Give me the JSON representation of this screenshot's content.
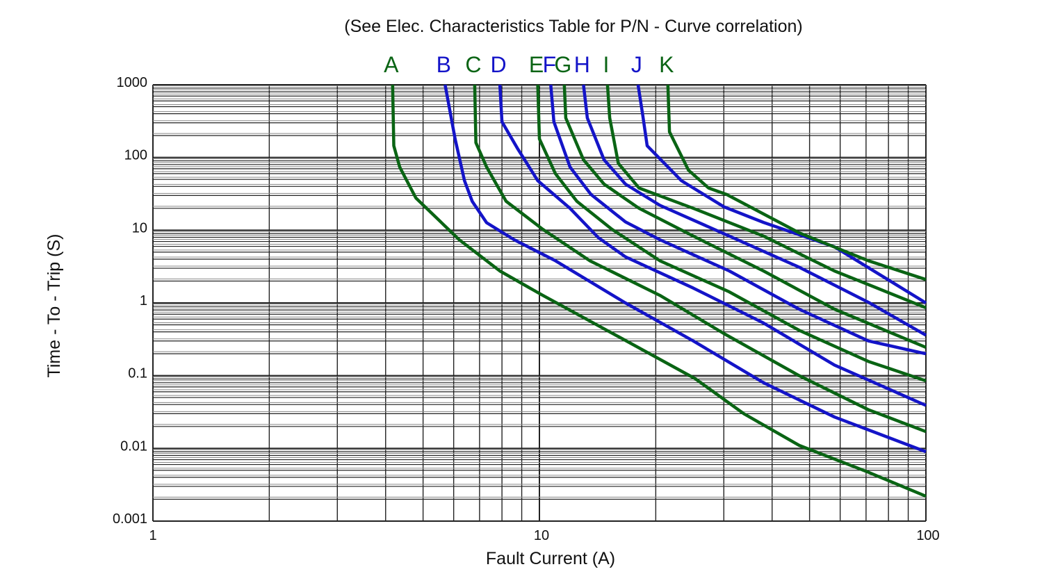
{
  "chart_data": {
    "type": "line",
    "title": "(See Elec. Characteristics Table for P/N - Curve correlation)",
    "xlabel": "Fault Current (A)",
    "ylabel": "Time - To - Trip (S)",
    "xscale": "log",
    "yscale": "log",
    "xlim": [
      1,
      100
    ],
    "ylim": [
      0.001,
      1000
    ],
    "xticks": [
      {
        "value": 1,
        "label": "1"
      },
      {
        "value": 10,
        "label": "10"
      },
      {
        "value": 100,
        "label": "100"
      }
    ],
    "yticks": [
      {
        "value": 1000,
        "label": "1000"
      },
      {
        "value": 100,
        "label": "100"
      },
      {
        "value": 10,
        "label": "10"
      },
      {
        "value": 1,
        "label": "1"
      },
      {
        "value": 0.1,
        "label": "0.1"
      },
      {
        "value": 0.01,
        "label": "0.01"
      },
      {
        "value": 0.001,
        "label": "0.001"
      }
    ],
    "grid": true,
    "colors": {
      "green": "#0a6414",
      "blue": "#1414c8",
      "grid": "#222222"
    },
    "series": [
      {
        "name": "A",
        "color": "#0a6414",
        "points": [
          [
            4.17,
            1000
          ],
          [
            4.2,
            145
          ],
          [
            4.35,
            74
          ],
          [
            4.79,
            27.7
          ],
          [
            6.2,
            7.4
          ],
          [
            7.9,
            2.75
          ],
          [
            10.2,
            1.27
          ],
          [
            16.7,
            0.305
          ],
          [
            25.3,
            0.091
          ],
          [
            33.8,
            0.03
          ],
          [
            47,
            0.011
          ],
          [
            71,
            0.0047
          ],
          [
            100,
            0.0022
          ]
        ]
      },
      {
        "name": "B",
        "color": "#1414c8",
        "points": [
          [
            5.7,
            1000
          ],
          [
            6.05,
            180
          ],
          [
            6.4,
            48
          ],
          [
            6.7,
            25
          ],
          [
            7.3,
            12.7
          ],
          [
            8.6,
            7.4
          ],
          [
            11,
            3.8
          ],
          [
            16.7,
            1.0
          ],
          [
            25,
            0.3
          ],
          [
            38,
            0.08
          ],
          [
            58,
            0.027
          ],
          [
            100,
            0.009
          ]
        ]
      },
      {
        "name": "C",
        "color": "#0a6414",
        "points": [
          [
            6.8,
            1000
          ],
          [
            6.85,
            160
          ],
          [
            7.3,
            74
          ],
          [
            8.2,
            25
          ],
          [
            10.2,
            10.3
          ],
          [
            13.5,
            3.8
          ],
          [
            20.5,
            1.27
          ],
          [
            30,
            0.38
          ],
          [
            47,
            0.1
          ],
          [
            71,
            0.034
          ],
          [
            100,
            0.017
          ]
        ]
      },
      {
        "name": "D",
        "color": "#1414c8",
        "points": [
          [
            7.9,
            1000
          ],
          [
            8.0,
            310
          ],
          [
            8.8,
            130
          ],
          [
            9.9,
            48
          ],
          [
            12,
            20
          ],
          [
            14.2,
            7.9
          ],
          [
            16.7,
            4.3
          ],
          [
            25,
            1.6
          ],
          [
            38,
            0.53
          ],
          [
            58,
            0.14
          ],
          [
            100,
            0.039
          ]
        ]
      },
      {
        "name": "E",
        "color": "#0a6414",
        "points": [
          [
            9.9,
            1000
          ],
          [
            10,
            180
          ],
          [
            11,
            60
          ],
          [
            12.5,
            25
          ],
          [
            15.4,
            10.3
          ],
          [
            20.5,
            3.8
          ],
          [
            31,
            1.42
          ],
          [
            47,
            0.42
          ],
          [
            71,
            0.157
          ],
          [
            100,
            0.085
          ]
        ]
      },
      {
        "name": "F",
        "color": "#1414c8",
        "points": [
          [
            10.7,
            1000
          ],
          [
            10.9,
            310
          ],
          [
            12,
            74
          ],
          [
            13.6,
            31
          ],
          [
            16.7,
            13
          ],
          [
            20.5,
            7.4
          ],
          [
            31,
            2.75
          ],
          [
            47,
            0.82
          ],
          [
            71,
            0.3
          ],
          [
            100,
            0.2
          ]
        ]
      },
      {
        "name": "G",
        "color": "#0a6414",
        "points": [
          [
            11.6,
            1000
          ],
          [
            11.7,
            350
          ],
          [
            13,
            93
          ],
          [
            14.7,
            43
          ],
          [
            18.1,
            20
          ],
          [
            25,
            8.3
          ],
          [
            38,
            2.75
          ],
          [
            58,
            0.82
          ],
          [
            100,
            0.245
          ]
        ]
      },
      {
        "name": "H",
        "color": "#1414c8",
        "points": [
          [
            13,
            1000
          ],
          [
            13.3,
            350
          ],
          [
            14.7,
            93
          ],
          [
            16.7,
            43
          ],
          [
            20.5,
            22
          ],
          [
            31,
            8.3
          ],
          [
            47,
            3.1
          ],
          [
            71,
            1.02
          ],
          [
            100,
            0.36
          ]
        ]
      },
      {
        "name": "I",
        "color": "#0a6414",
        "points": [
          [
            15,
            1000
          ],
          [
            15.2,
            350
          ],
          [
            16,
            83
          ],
          [
            18.1,
            38
          ],
          [
            25,
            20
          ],
          [
            38,
            8.3
          ],
          [
            58,
            2.75
          ],
          [
            100,
            0.86
          ]
        ]
      },
      {
        "name": "J",
        "color": "#1414c8",
        "points": [
          [
            18,
            1000
          ],
          [
            18.5,
            390
          ],
          [
            19,
            145
          ],
          [
            23.3,
            48
          ],
          [
            30,
            21
          ],
          [
            38,
            12.8
          ],
          [
            58,
            5.9
          ],
          [
            100,
            1.0
          ]
        ]
      },
      {
        "name": "K",
        "color": "#0a6414",
        "points": [
          [
            21.5,
            1000
          ],
          [
            21.7,
            225
          ],
          [
            24.3,
            67
          ],
          [
            27.4,
            38
          ],
          [
            30.5,
            31
          ],
          [
            47,
            9.2
          ],
          [
            71,
            3.8
          ],
          [
            100,
            2.1
          ]
        ]
      }
    ]
  }
}
